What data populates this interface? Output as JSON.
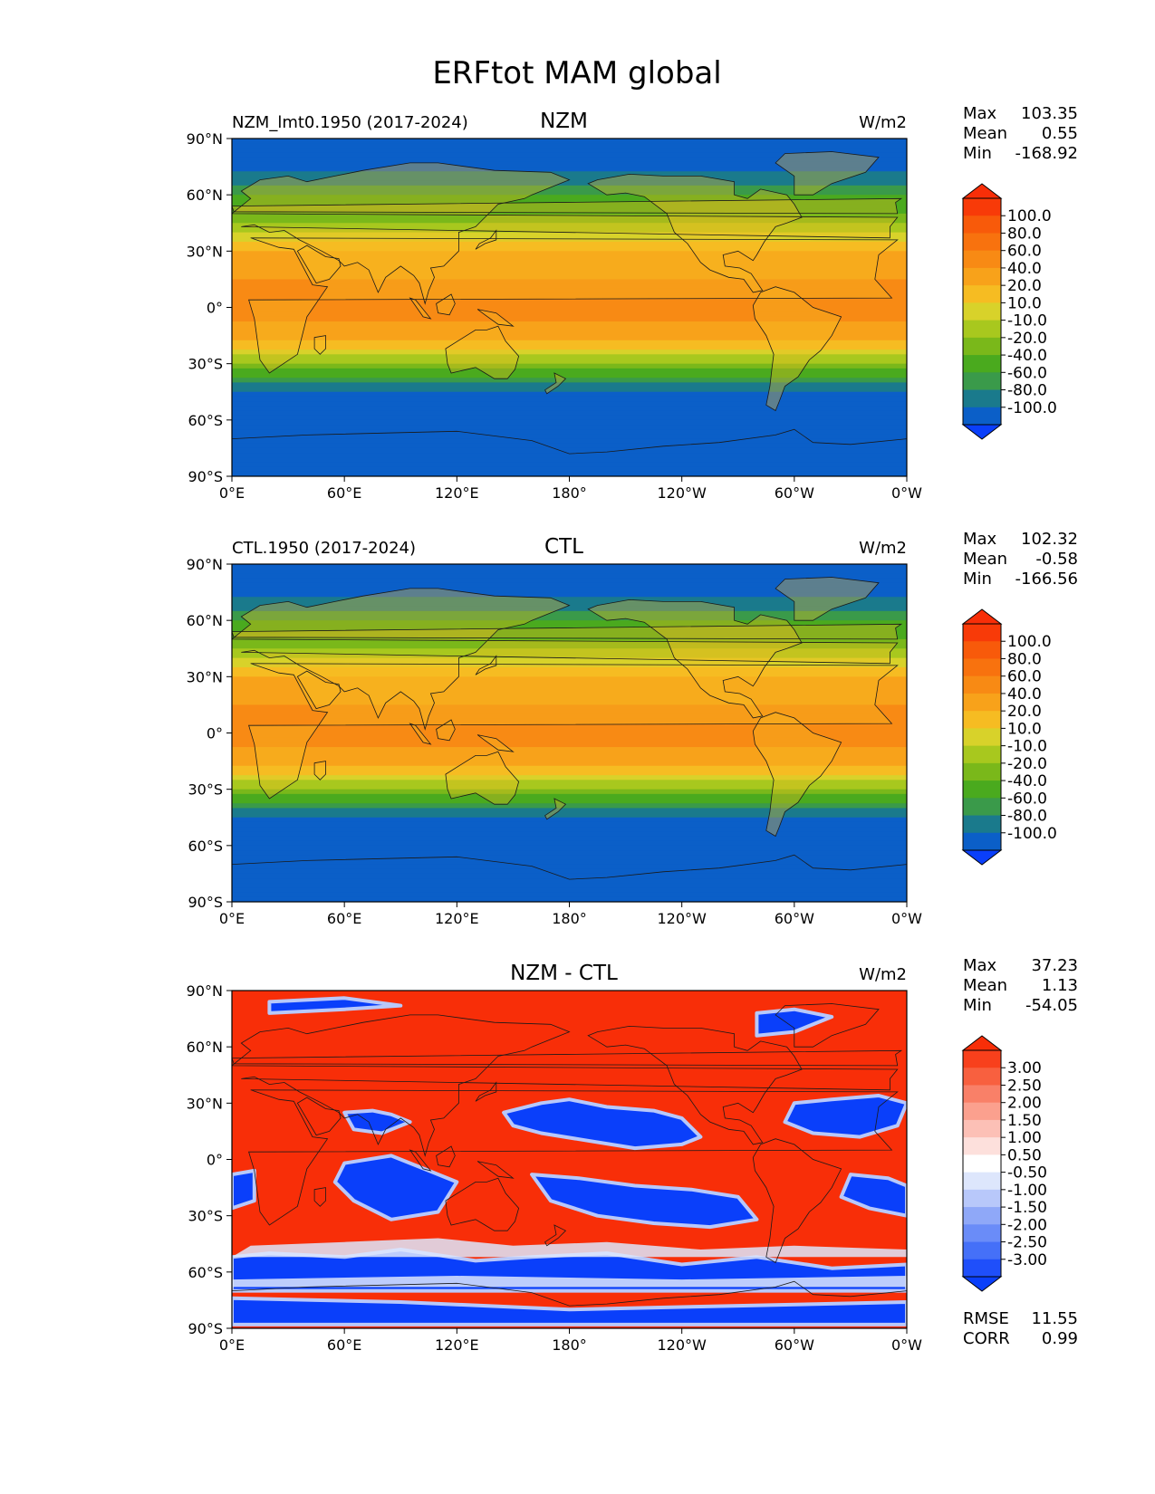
{
  "figure": {
    "title": "ERFtot MAM global"
  },
  "palettes": {
    "field": [
      "#0a3ffa",
      "#0b5fc8",
      "#1a7a8c",
      "#3a9a4a",
      "#4aaa1e",
      "#7ab81a",
      "#a8c81e",
      "#d8d22a",
      "#f6bc22",
      "#f8a21a",
      "#f88a14",
      "#f8720e",
      "#f85a0a",
      "#f83a08",
      "#f82e08"
    ],
    "diff": [
      "#0a3ffa",
      "#1f4ffa",
      "#4570f8",
      "#6a8cf8",
      "#8fa8f8",
      "#b8c8fa",
      "#dde6fc",
      "#ffffff",
      "#fde0dc",
      "#fcc0b6",
      "#fba08e",
      "#f98068",
      "#f8603f",
      "#f8401c",
      "#f82e08"
    ]
  },
  "panels": [
    {
      "left_label": "NZM_lmt0.1950 (2017-2024)",
      "center_label": "NZM",
      "units": "W/m2",
      "stats": [
        {
          "label": "Max",
          "value": "103.35"
        },
        {
          "label": "Mean",
          "value": "0.55"
        },
        {
          "label": "Min",
          "value": "-168.92"
        }
      ],
      "colorbar_levels": [
        "100.0",
        "80.0",
        "60.0",
        "40.0",
        "20.0",
        "10.0",
        "-10.0",
        "-20.0",
        "-40.0",
        "-60.0",
        "-80.0",
        "-100.0"
      ],
      "palette": "field"
    },
    {
      "left_label": "CTL.1950 (2017-2024)",
      "center_label": "CTL",
      "units": "W/m2",
      "stats": [
        {
          "label": "Max",
          "value": "102.32"
        },
        {
          "label": "Mean",
          "value": "-0.58"
        },
        {
          "label": "Min",
          "value": "-166.56"
        }
      ],
      "colorbar_levels": [
        "100.0",
        "80.0",
        "60.0",
        "40.0",
        "20.0",
        "10.0",
        "-10.0",
        "-20.0",
        "-40.0",
        "-60.0",
        "-80.0",
        "-100.0"
      ],
      "palette": "field"
    },
    {
      "left_label": "",
      "center_label": "NZM - CTL",
      "units": "W/m2",
      "stats": [
        {
          "label": "Max",
          "value": "37.23"
        },
        {
          "label": "Mean",
          "value": "1.13"
        },
        {
          "label": "Min",
          "value": "-54.05"
        }
      ],
      "colorbar_levels": [
        "3.00",
        "2.50",
        "2.00",
        "1.50",
        "1.00",
        "0.50",
        "-0.50",
        "-1.00",
        "-1.50",
        "-2.00",
        "-2.50",
        "-3.00"
      ],
      "palette": "diff",
      "extra_stats": [
        {
          "label": "RMSE",
          "value": "11.55"
        },
        {
          "label": "CORR",
          "value": "0.99"
        }
      ]
    }
  ],
  "axes": {
    "lat_ticks": [
      "90°N",
      "60°N",
      "30°N",
      "0°",
      "30°S",
      "60°S",
      "90°S"
    ],
    "lon_ticks": [
      "0°E",
      "60°E",
      "120°E",
      "180°",
      "120°W",
      "60°W",
      "0°W"
    ]
  },
  "chart_data": [
    {
      "type": "heatmap",
      "title": "NZM",
      "subtitle": "NZM_lmt0.1950 (2017-2024)",
      "units": "W/m2",
      "stats": {
        "max": 103.35,
        "mean": 0.55,
        "min": -168.92
      },
      "xlim": [
        0,
        360
      ],
      "ylim": [
        -90,
        90
      ],
      "zonal_profile": {
        "lat": [
          90,
          75,
          60,
          45,
          30,
          15,
          0,
          -15,
          -30,
          -45,
          -60,
          -75,
          -90
        ],
        "value": [
          -100,
          -90,
          -40,
          -10,
          40,
          60,
          70,
          50,
          -10,
          -80,
          -100,
          -100,
          -100
        ]
      }
    },
    {
      "type": "heatmap",
      "title": "CTL",
      "subtitle": "CTL.1950 (2017-2024)",
      "units": "W/m2",
      "stats": {
        "max": 102.32,
        "mean": -0.58,
        "min": -166.56
      },
      "xlim": [
        0,
        360
      ],
      "ylim": [
        -90,
        90
      ],
      "zonal_profile": {
        "lat": [
          90,
          75,
          60,
          45,
          30,
          15,
          0,
          -15,
          -30,
          -45,
          -60,
          -75,
          -90
        ],
        "value": [
          -100,
          -90,
          -40,
          -10,
          40,
          60,
          70,
          50,
          -10,
          -80,
          -100,
          -100,
          -100
        ]
      }
    },
    {
      "type": "heatmap",
      "title": "NZM - CTL",
      "units": "W/m2",
      "stats": {
        "max": 37.23,
        "mean": 1.13,
        "min": -54.05,
        "rmse": 11.55,
        "corr": 0.99
      },
      "xlim": [
        0,
        360
      ],
      "ylim": [
        -90,
        90
      ]
    }
  ]
}
